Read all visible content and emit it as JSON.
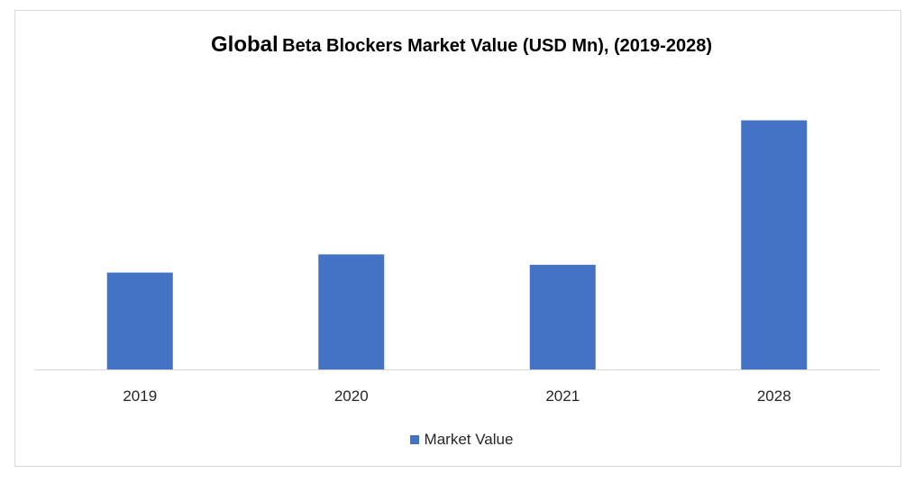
{
  "chart_data": {
    "type": "bar",
    "title_lead": "Global",
    "title_rest": "Beta Blockers Market Value (USD Mn), (2019-2028)",
    "categories": [
      "2019",
      "2020",
      "2021",
      "2028"
    ],
    "series": [
      {
        "name": "Market Value",
        "color": "#4472c4",
        "values": [
          112,
          133,
          121,
          288
        ]
      }
    ],
    "ylim": [
      0,
      300
    ],
    "grid": false,
    "legend_position": "bottom"
  }
}
